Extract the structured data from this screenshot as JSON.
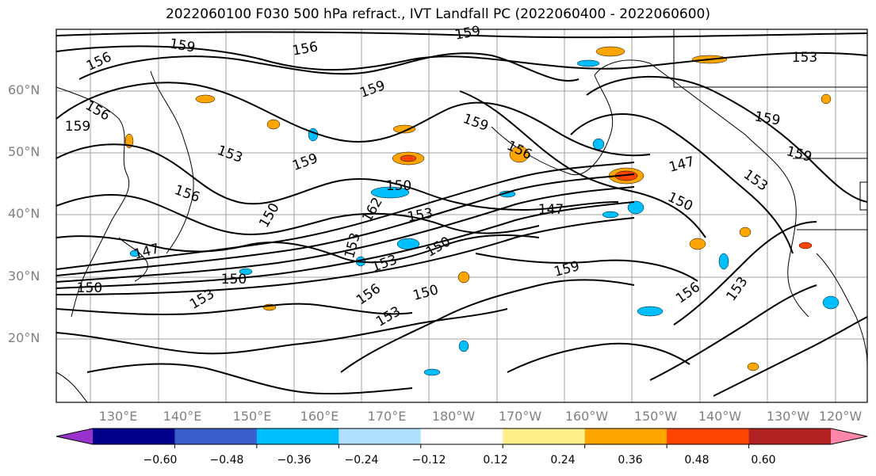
{
  "title": "2022060100 F030 500 hPa refract., IVT Landfall PC (2022060400 - 2022060600)",
  "lat_labels": [
    "60°N",
    "50°N",
    "40°N",
    "30°N",
    "20°N"
  ],
  "lon_labels": [
    "130°E",
    "140°E",
    "150°E",
    "160°E",
    "170°E",
    "180°W",
    "170°W",
    "160°W",
    "150°W",
    "140°W",
    "130°W",
    "120°W"
  ],
  "contour_labels": [
    "156",
    "159",
    "156",
    "159",
    "156",
    "159",
    "153",
    "159",
    "156",
    "159",
    "159",
    "156",
    "153",
    "159",
    "159",
    "153",
    "150",
    "147",
    "150",
    "153",
    "162",
    "147",
    "150",
    "153",
    "150",
    "153",
    "147",
    "150",
    "153",
    "150",
    "156",
    "150",
    "153",
    "159",
    "156",
    "153"
  ],
  "colorbar": {
    "colors": [
      "#9932cc",
      "#00008b",
      "#3a5fcd",
      "#00bfff",
      "#b0e2ff",
      "#ffffff",
      "#fff08c",
      "#ffa500",
      "#ff4500",
      "#b22222",
      "#ff88aa"
    ],
    "ticks": [
      "−0.60",
      "−0.48",
      "−0.36",
      "−0.24",
      "−0.12",
      "0.12",
      "0.24",
      "0.36",
      "0.48",
      "0.60"
    ]
  }
}
